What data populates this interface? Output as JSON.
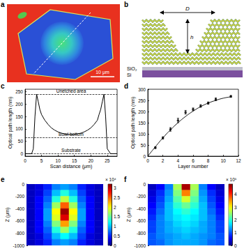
{
  "a": {
    "label": "a",
    "scale_bar": "10 μm"
  },
  "b": {
    "label": "b",
    "dimensions": [
      "D",
      "h"
    ],
    "substrate_layers": [
      "SiO₂",
      "Si"
    ]
  },
  "chart_data": [
    {
      "label": "c",
      "type": "line",
      "x_label": "Scan distance (μm)",
      "y_label": "Optical path length (nm)",
      "x": [
        0,
        1,
        2,
        2.5,
        3,
        3.5,
        4,
        4.5,
        5,
        6,
        7,
        8,
        9,
        10,
        11,
        12,
        13,
        14,
        15,
        16,
        17,
        18,
        19,
        20,
        21,
        22,
        22.5,
        23,
        23.5,
        24,
        24.5,
        25,
        26,
        27,
        28
      ],
      "values": [
        0,
        0,
        0,
        20,
        150,
        240,
        210,
        178,
        158,
        135,
        118,
        104,
        95,
        88,
        83,
        80,
        78,
        77,
        78,
        80,
        83,
        88,
        95,
        104,
        118,
        135,
        158,
        178,
        210,
        240,
        150,
        20,
        0,
        0,
        0
      ],
      "color": "#000000",
      "xlim": [
        0,
        28
      ],
      "xticks": [
        0,
        5,
        10,
        15,
        20,
        25
      ],
      "ylim": [
        -10,
        260
      ],
      "yticks": [
        0,
        50,
        100,
        150,
        200,
        250
      ],
      "reference_lines": [
        {
          "value": 240,
          "label": "Unetched area"
        },
        {
          "value": 65,
          "label": "Bowl bottom"
        },
        {
          "value": 0,
          "label": "Substrate"
        }
      ],
      "grid": false
    },
    {
      "label": "d",
      "type": "scatter",
      "x_label": "Layer number",
      "y_label": "Optical path length (nm)",
      "x": [
        1,
        2,
        3,
        4,
        5,
        6,
        7,
        8,
        9,
        11
      ],
      "values": [
        38,
        82,
        120,
        160,
        197,
        210,
        225,
        238,
        255,
        268
      ],
      "errors": [
        4,
        5,
        8,
        10,
        8,
        6,
        6,
        5,
        6,
        4
      ],
      "color": "#000000",
      "marker": "circle",
      "fit": {
        "type": "line",
        "x": [
          0,
          1,
          2,
          3,
          4,
          5,
          6,
          7,
          8,
          9,
          10,
          11
        ],
        "values": [
          0,
          42,
          82,
          118,
          150,
          178,
          202,
          222,
          238,
          250,
          260,
          266
        ]
      },
      "xlim": [
        0,
        12
      ],
      "xticks": [
        0,
        2,
        4,
        6,
        8,
        10,
        12
      ],
      "ylim": [
        0,
        300
      ],
      "yticks": [
        0,
        50,
        100,
        150,
        200,
        250,
        300
      ],
      "grid": false
    },
    {
      "label": "e",
      "type": "heatmap",
      "y_label": "Z (μm)",
      "cells": [
        [
          0.2,
          0.3,
          0.5,
          0.8,
          0.9,
          0.8,
          0.5,
          0.3,
          0.2
        ],
        [
          0.2,
          0.3,
          0.6,
          1.0,
          1.3,
          1.0,
          0.6,
          0.3,
          0.2
        ],
        [
          0.2,
          0.4,
          0.7,
          1.3,
          1.8,
          1.3,
          0.7,
          0.4,
          0.2
        ],
        [
          0.2,
          0.4,
          0.8,
          1.7,
          2.5,
          1.7,
          0.8,
          0.4,
          0.2
        ],
        [
          0.2,
          0.4,
          0.9,
          2.0,
          3.1,
          2.0,
          0.9,
          0.4,
          0.2
        ],
        [
          0.2,
          0.4,
          0.9,
          1.9,
          2.9,
          1.9,
          0.9,
          0.4,
          0.2
        ],
        [
          0.2,
          0.4,
          0.8,
          1.6,
          2.3,
          1.6,
          0.8,
          0.4,
          0.2
        ],
        [
          0.2,
          0.4,
          0.7,
          1.3,
          1.7,
          1.3,
          0.7,
          0.4,
          0.2
        ],
        [
          0.2,
          0.3,
          0.6,
          1.0,
          1.2,
          1.0,
          0.6,
          0.3,
          0.2
        ],
        [
          0.2,
          0.3,
          0.5,
          0.8,
          0.9,
          0.8,
          0.5,
          0.3,
          0.2
        ]
      ],
      "ylim": [
        -1000,
        0
      ],
      "yticks": [
        -1000,
        -800,
        -600,
        -400,
        -200,
        0
      ],
      "tick_labels": "y",
      "colorbar": {
        "range": [
          0,
          3.2
        ],
        "ticks": [
          0,
          0.5,
          1,
          1.5,
          2,
          2.5,
          3
        ],
        "multiplier": "× 10⁴"
      }
    },
    {
      "label": "f",
      "type": "heatmap",
      "y_label": "Z (μm)",
      "cells": [
        [
          0.3,
          0.6,
          1.2,
          2.6,
          4.6,
          2.6,
          1.2,
          0.6,
          0.3
        ],
        [
          0.4,
          0.8,
          1.3,
          2.4,
          3.6,
          2.4,
          1.3,
          0.8,
          0.4
        ],
        [
          0.5,
          0.9,
          1.4,
          2.2,
          2.8,
          2.2,
          1.4,
          0.9,
          0.5
        ],
        [
          0.6,
          1.0,
          1.5,
          2.0,
          2.3,
          2.0,
          1.5,
          1.0,
          0.6
        ],
        [
          0.7,
          1.1,
          1.5,
          1.8,
          2.0,
          1.8,
          1.5,
          1.1,
          0.7
        ],
        [
          0.8,
          1.2,
          1.5,
          1.7,
          1.8,
          1.7,
          1.5,
          1.2,
          0.8
        ],
        [
          0.9,
          1.2,
          1.4,
          1.6,
          1.7,
          1.6,
          1.4,
          1.2,
          0.9
        ],
        [
          0.9,
          1.2,
          1.4,
          1.5,
          1.6,
          1.5,
          1.4,
          1.2,
          0.9
        ],
        [
          1.0,
          1.2,
          1.3,
          1.4,
          1.5,
          1.4,
          1.3,
          1.2,
          1.0
        ],
        [
          1.0,
          1.1,
          1.3,
          1.4,
          1.4,
          1.4,
          1.3,
          1.1,
          1.0
        ]
      ],
      "ylim": [
        -1000,
        0
      ],
      "yticks": [
        -1000,
        -800,
        -600,
        -400,
        -200,
        0
      ],
      "tick_labels": "y",
      "colorbar": {
        "range": [
          0,
          4.8
        ],
        "ticks": [
          0,
          1,
          2,
          3,
          4
        ],
        "multiplier": "× 10⁵"
      }
    }
  ]
}
